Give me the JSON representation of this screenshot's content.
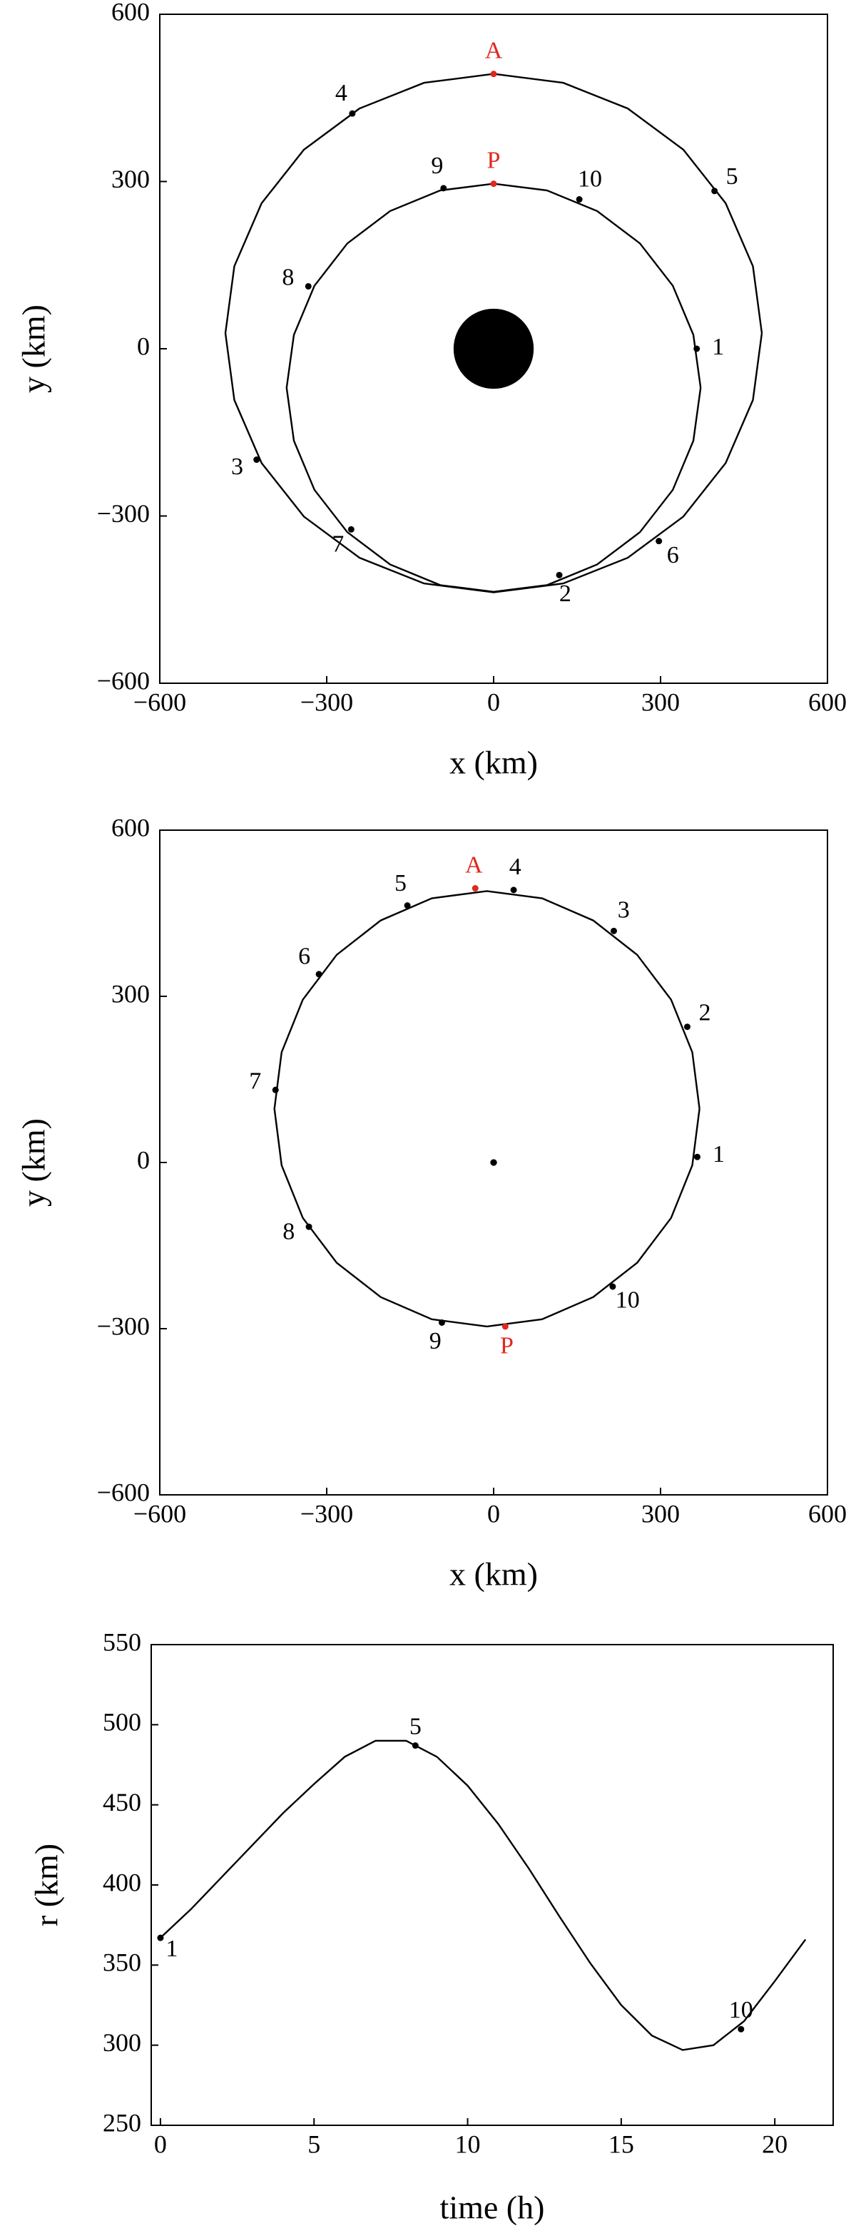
{
  "chart_data": [
    {
      "type": "orbit",
      "xlabel": "x (km)",
      "ylabel": "y (km)",
      "xlim": [
        -600,
        600
      ],
      "ylim": [
        -600,
        600
      ],
      "xticks": [
        {
          "value": -600,
          "label": "−600"
        },
        {
          "value": -300,
          "label": "−300"
        },
        0,
        300,
        600
      ],
      "yticks": [
        {
          "value": -600,
          "label": "−600"
        },
        {
          "value": -300,
          "label": "−300"
        },
        0,
        300,
        600
      ],
      "central_body": {
        "x": 0,
        "y": 0,
        "radius": 72
      },
      "curves": [
        {
          "x": [
            482,
            466,
            417,
            341,
            241,
            125,
            0,
            -125,
            -241,
            -341,
            -417,
            -466,
            -482,
            -466,
            -417,
            -341,
            -241,
            -125,
            0,
            125,
            241,
            341,
            417,
            466,
            482
          ],
          "y": [
            28,
            148,
            261,
            357,
            431,
            477,
            493,
            477,
            431,
            357,
            261,
            148,
            28,
            -92,
            -205,
            -301,
            -375,
            -421,
            -437,
            -421,
            -375,
            -301,
            -205,
            -92,
            28
          ]
        },
        {
          "x": [
            372,
            359,
            322,
            263,
            186,
            96,
            0,
            -96,
            -186,
            -263,
            -322,
            -359,
            -372,
            -359,
            -322,
            -263,
            -186,
            -96,
            0,
            96,
            186,
            263,
            322,
            359,
            372
          ],
          "y": [
            -70,
            25,
            113,
            189,
            247,
            284,
            296,
            284,
            247,
            189,
            113,
            25,
            -70,
            -165,
            -253,
            -329,
            -387,
            -424,
            -436,
            -424,
            -387,
            -329,
            -253,
            -165,
            -70
          ]
        }
      ],
      "markers": [
        {
          "label": "1",
          "x": 365,
          "y": 0,
          "color": "#000000"
        },
        {
          "label": "2",
          "x": 118,
          "y": -406,
          "color": "#000000"
        },
        {
          "label": "3",
          "x": -426,
          "y": -199,
          "color": "#000000"
        },
        {
          "label": "4",
          "x": -254,
          "y": 422,
          "color": "#000000"
        },
        {
          "label": "5",
          "x": 397,
          "y": 283,
          "color": "#000000"
        },
        {
          "label": "6",
          "x": 297,
          "y": -345,
          "color": "#000000"
        },
        {
          "label": "7",
          "x": -256,
          "y": -324,
          "color": "#000000"
        },
        {
          "label": "8",
          "x": -333,
          "y": 112,
          "color": "#000000"
        },
        {
          "label": "9",
          "x": -90,
          "y": 288,
          "color": "#000000"
        },
        {
          "label": "10",
          "x": 154,
          "y": 268,
          "color": "#000000"
        },
        {
          "label": "A",
          "x": 0,
          "y": 493,
          "color": "#e0281e"
        },
        {
          "label": "P",
          "x": 0,
          "y": 296,
          "color": "#e0281e"
        }
      ]
    },
    {
      "type": "orbit",
      "xlabel": "x (km)",
      "ylabel": "y (km)",
      "xlim": [
        -600,
        600
      ],
      "ylim": [
        -600,
        600
      ],
      "xticks": [
        {
          "value": -600,
          "label": "−600"
        },
        {
          "value": -300,
          "label": "−300"
        },
        0,
        300,
        600
      ],
      "yticks": [
        {
          "value": -600,
          "label": "−600"
        },
        {
          "value": -300,
          "label": "−300"
        },
        0,
        300,
        600
      ],
      "central_body": {
        "x": 0,
        "y": 0,
        "radius": 6
      },
      "curves": [
        {
          "x": [
            370,
            357,
            319,
            258,
            179,
            87,
            -12,
            -111,
            -203,
            -282,
            -343,
            -381,
            -394,
            -381,
            -343,
            -282,
            -203,
            -111,
            -12,
            87,
            179,
            258,
            319,
            357,
            370
          ],
          "y": [
            97,
            199,
            294,
            375,
            437,
            477,
            490,
            477,
            437,
            375,
            294,
            199,
            97,
            -5,
            -100,
            -181,
            -243,
            -283,
            -296,
            -283,
            -243,
            -181,
            -100,
            -5,
            97
          ]
        }
      ],
      "markers": [
        {
          "label": "1",
          "x": 366,
          "y": 10,
          "color": "#000000"
        },
        {
          "label": "2",
          "x": 348,
          "y": 245,
          "color": "#000000"
        },
        {
          "label": "3",
          "x": 216,
          "y": 418,
          "color": "#000000"
        },
        {
          "label": "4",
          "x": 36,
          "y": 492,
          "color": "#000000"
        },
        {
          "label": "5",
          "x": -155,
          "y": 464,
          "color": "#000000"
        },
        {
          "label": "6",
          "x": -314,
          "y": 340,
          "color": "#000000"
        },
        {
          "label": "7",
          "x": -392,
          "y": 131,
          "color": "#000000"
        },
        {
          "label": "8",
          "x": -332,
          "y": -116,
          "color": "#000000"
        },
        {
          "label": "9",
          "x": -93,
          "y": -289,
          "color": "#000000"
        },
        {
          "label": "10",
          "x": 214,
          "y": -224,
          "color": "#000000"
        },
        {
          "label": "A",
          "x": -33,
          "y": 495,
          "color": "#e0281e"
        },
        {
          "label": "P",
          "x": 21,
          "y": -296,
          "color": "#e0281e"
        }
      ]
    },
    {
      "type": "line",
      "xlabel": "time (h)",
      "ylabel": "r (km)",
      "xlim": [
        -0.3,
        21.9
      ],
      "ylim": [
        250,
        550
      ],
      "xticks": [
        0,
        5,
        10,
        15,
        20
      ],
      "yticks": [
        250,
        300,
        350,
        400,
        450,
        500,
        550
      ],
      "curves": [
        {
          "x": [
            0,
            1,
            2,
            3,
            4,
            5,
            6,
            7,
            8,
            9,
            10,
            11,
            12,
            13,
            14,
            15,
            16,
            17,
            18,
            19,
            20,
            21
          ],
          "y": [
            367,
            385,
            405,
            425,
            445,
            463,
            480,
            490,
            490,
            480,
            462,
            438,
            410,
            380,
            351,
            325,
            306,
            297,
            300,
            315,
            340,
            366
          ]
        }
      ],
      "markers": [
        {
          "label": "1",
          "x": 0,
          "y": 367,
          "color": "#000000"
        },
        {
          "label": "5",
          "x": 8.3,
          "y": 487,
          "color": "#000000"
        },
        {
          "label": "10",
          "x": 18.9,
          "y": 310,
          "color": "#000000"
        }
      ]
    }
  ]
}
